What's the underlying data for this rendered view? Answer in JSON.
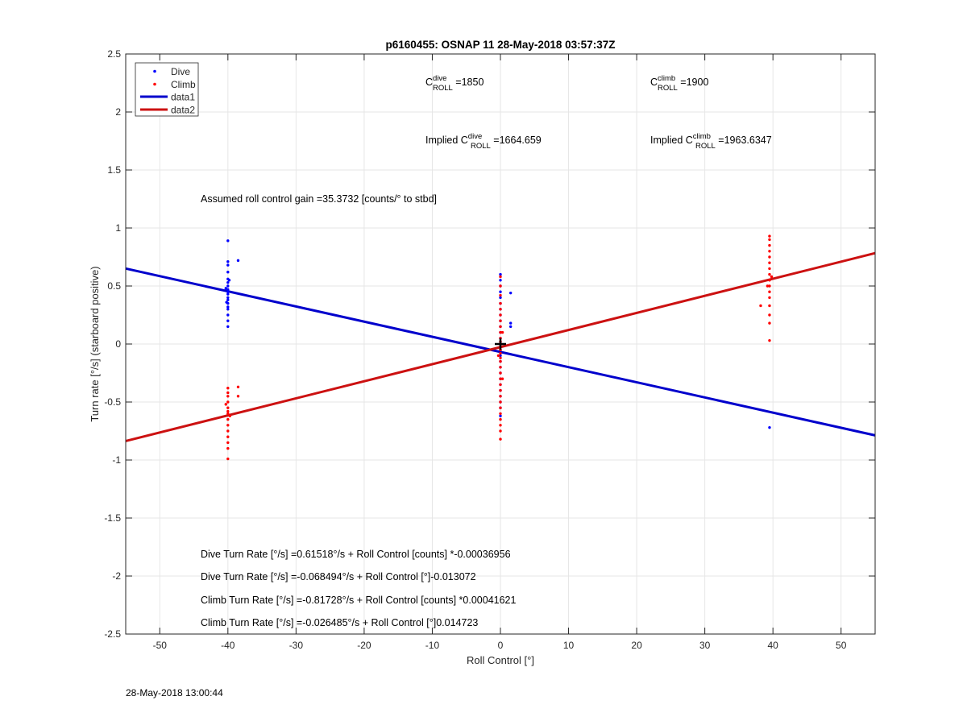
{
  "chart_data": {
    "type": "scatter",
    "title": "p6160455: OSNAP 11 28-May-2018 03:57:37Z",
    "xlabel": "Roll Control [°]",
    "ylabel": "Turn rate [°/s] (starboard positive)",
    "xlim": [
      -55,
      55
    ],
    "ylim": [
      -2.5,
      2.5
    ],
    "x_ticks": [
      -50,
      -40,
      -30,
      -20,
      -10,
      0,
      10,
      20,
      30,
      40,
      50
    ],
    "y_ticks": [
      2.5,
      2,
      1.5,
      1,
      0.5,
      0,
      -0.5,
      -1,
      -1.5,
      -2,
      -2.5
    ],
    "grid": true,
    "legend_position": "top-left",
    "legend": [
      {
        "name": "Dive",
        "kind": "marker",
        "color": "#0000ff"
      },
      {
        "name": "Climb",
        "kind": "marker",
        "color": "#ff0000"
      },
      {
        "name": "data1",
        "kind": "line",
        "color": "#0000cc"
      },
      {
        "name": "data2",
        "kind": "line",
        "color": "#cc1111"
      }
    ],
    "series": [
      {
        "name": "Dive",
        "color": "#0000ff",
        "points": [
          [
            -40,
            0.89
          ],
          [
            -40,
            0.71
          ],
          [
            -40,
            0.68
          ],
          [
            -40,
            0.62
          ],
          [
            -40,
            0.56
          ],
          [
            -40,
            0.53
          ],
          [
            -40,
            0.5
          ],
          [
            -40,
            0.47
          ],
          [
            -40,
            0.45
          ],
          [
            -40,
            0.43
          ],
          [
            -40,
            0.4
          ],
          [
            -40,
            0.38
          ],
          [
            -40,
            0.35
          ],
          [
            -40,
            0.32
          ],
          [
            -40,
            0.3
          ],
          [
            -40,
            0.25
          ],
          [
            -40,
            0.2
          ],
          [
            -40,
            0.15
          ],
          [
            -40.3,
            0.48
          ],
          [
            -39.8,
            0.55
          ],
          [
            -40.2,
            0.36
          ],
          [
            -38.5,
            0.72
          ],
          [
            0,
            0.6
          ],
          [
            0,
            0.55
          ],
          [
            0,
            0.5
          ],
          [
            0,
            0.45
          ],
          [
            0,
            0.4
          ],
          [
            0,
            0.35
          ],
          [
            0,
            0.3
          ],
          [
            0,
            0.25
          ],
          [
            0,
            0.2
          ],
          [
            0,
            0.15
          ],
          [
            0,
            0.1
          ],
          [
            0,
            0.05
          ],
          [
            0,
            0
          ],
          [
            0,
            -0.05
          ],
          [
            0,
            -0.1
          ],
          [
            0,
            -0.15
          ],
          [
            0,
            -0.2
          ],
          [
            0,
            -0.25
          ],
          [
            0,
            -0.3
          ],
          [
            0,
            -0.35
          ],
          [
            0,
            -0.4
          ],
          [
            0,
            -0.45
          ],
          [
            0,
            -0.5
          ],
          [
            0,
            -0.55
          ],
          [
            0,
            -0.62
          ],
          [
            1.5,
            0.44
          ],
          [
            1.5,
            0.18
          ],
          [
            1.5,
            0.15
          ],
          [
            39.5,
            -0.72
          ]
        ]
      },
      {
        "name": "Climb",
        "color": "#ff0000",
        "points": [
          [
            -40,
            -0.38
          ],
          [
            -40,
            -0.42
          ],
          [
            -40,
            -0.45
          ],
          [
            -40,
            -0.5
          ],
          [
            -40,
            -0.55
          ],
          [
            -40,
            -0.58
          ],
          [
            -40,
            -0.6
          ],
          [
            -40,
            -0.65
          ],
          [
            -40,
            -0.7
          ],
          [
            -40,
            -0.75
          ],
          [
            -40,
            -0.8
          ],
          [
            -40,
            -0.85
          ],
          [
            -40,
            -0.9
          ],
          [
            -40,
            -0.99
          ],
          [
            -39.7,
            -0.62
          ],
          [
            -40.3,
            -0.52
          ],
          [
            -38.5,
            -0.37
          ],
          [
            -38.5,
            -0.45
          ],
          [
            0,
            0.58
          ],
          [
            0,
            0.5
          ],
          [
            0,
            0.42
          ],
          [
            0,
            0.35
          ],
          [
            0,
            0.3
          ],
          [
            0,
            0.25
          ],
          [
            0,
            0.2
          ],
          [
            0,
            0.15
          ],
          [
            0,
            0.1
          ],
          [
            0,
            0.05
          ],
          [
            0,
            0.02
          ],
          [
            0,
            -0.02
          ],
          [
            0,
            -0.05
          ],
          [
            0,
            -0.08
          ],
          [
            0,
            -0.12
          ],
          [
            0,
            -0.15
          ],
          [
            0,
            -0.2
          ],
          [
            0,
            -0.25
          ],
          [
            0,
            -0.3
          ],
          [
            0,
            -0.35
          ],
          [
            0,
            -0.4
          ],
          [
            0,
            -0.45
          ],
          [
            0,
            -0.5
          ],
          [
            0,
            -0.55
          ],
          [
            0,
            -0.6
          ],
          [
            0,
            -0.65
          ],
          [
            0,
            -0.7
          ],
          [
            0,
            -0.75
          ],
          [
            0,
            -0.82
          ],
          [
            0.3,
            0.1
          ],
          [
            -0.3,
            -0.1
          ],
          [
            0.3,
            -0.3
          ],
          [
            39.5,
            0.93
          ],
          [
            39.5,
            0.9
          ],
          [
            39.5,
            0.85
          ],
          [
            39.5,
            0.8
          ],
          [
            39.5,
            0.75
          ],
          [
            39.5,
            0.7
          ],
          [
            39.5,
            0.65
          ],
          [
            39.5,
            0.6
          ],
          [
            39.5,
            0.55
          ],
          [
            39.5,
            0.5
          ],
          [
            39.5,
            0.45
          ],
          [
            39.5,
            0.4
          ],
          [
            39.5,
            0.33
          ],
          [
            39.5,
            0.25
          ],
          [
            39.5,
            0.18
          ],
          [
            39.5,
            0.03
          ],
          [
            39.8,
            0.58
          ],
          [
            39.2,
            0.5
          ],
          [
            38.2,
            0.33
          ]
        ]
      }
    ],
    "lines": [
      {
        "name": "data1",
        "color": "#0000cc",
        "intercept": -0.068494,
        "slope": -0.013072
      },
      {
        "name": "data2",
        "color": "#cc1111",
        "intercept": -0.026485,
        "slope": 0.014723
      }
    ],
    "marker": {
      "x": 0,
      "y": 0,
      "symbol": "+",
      "color": "#000000"
    },
    "annotations": {
      "c_dive_pre": "C",
      "c_dive_sup": "dive",
      "c_dive_sub": "ROLL",
      "c_dive_val": " =1850",
      "c_climb_pre": "C",
      "c_climb_sup": "climb",
      "c_climb_sub": "ROLL",
      "c_climb_val": " =1900",
      "impl_dive_pre": "Implied C",
      "impl_dive_sup": "dive",
      "impl_dive_sub": "ROLL",
      "impl_dive_val": " =1664.659",
      "impl_climb_pre": "Implied C",
      "impl_climb_sup": "climb",
      "impl_climb_sub": "ROLL",
      "impl_climb_val": " =1963.6347",
      "gain": "Assumed roll control gain =35.3732 [counts/° to stbd]",
      "eq1": "Dive Turn Rate [°/s] =0.61518°/s + Roll Control [counts] *-0.00036956",
      "eq2": "Dive Turn Rate [°/s] =-0.068494°/s + Roll Control [°]-0.013072",
      "eq3": "Climb Turn Rate [°/s] =-0.81728°/s + Roll Control [counts] *0.00041621",
      "eq4": "Climb Turn Rate [°/s] =-0.026485°/s + Roll Control [°]0.014723"
    }
  },
  "footer": {
    "timestamp": "28-May-2018 13:00:44"
  }
}
